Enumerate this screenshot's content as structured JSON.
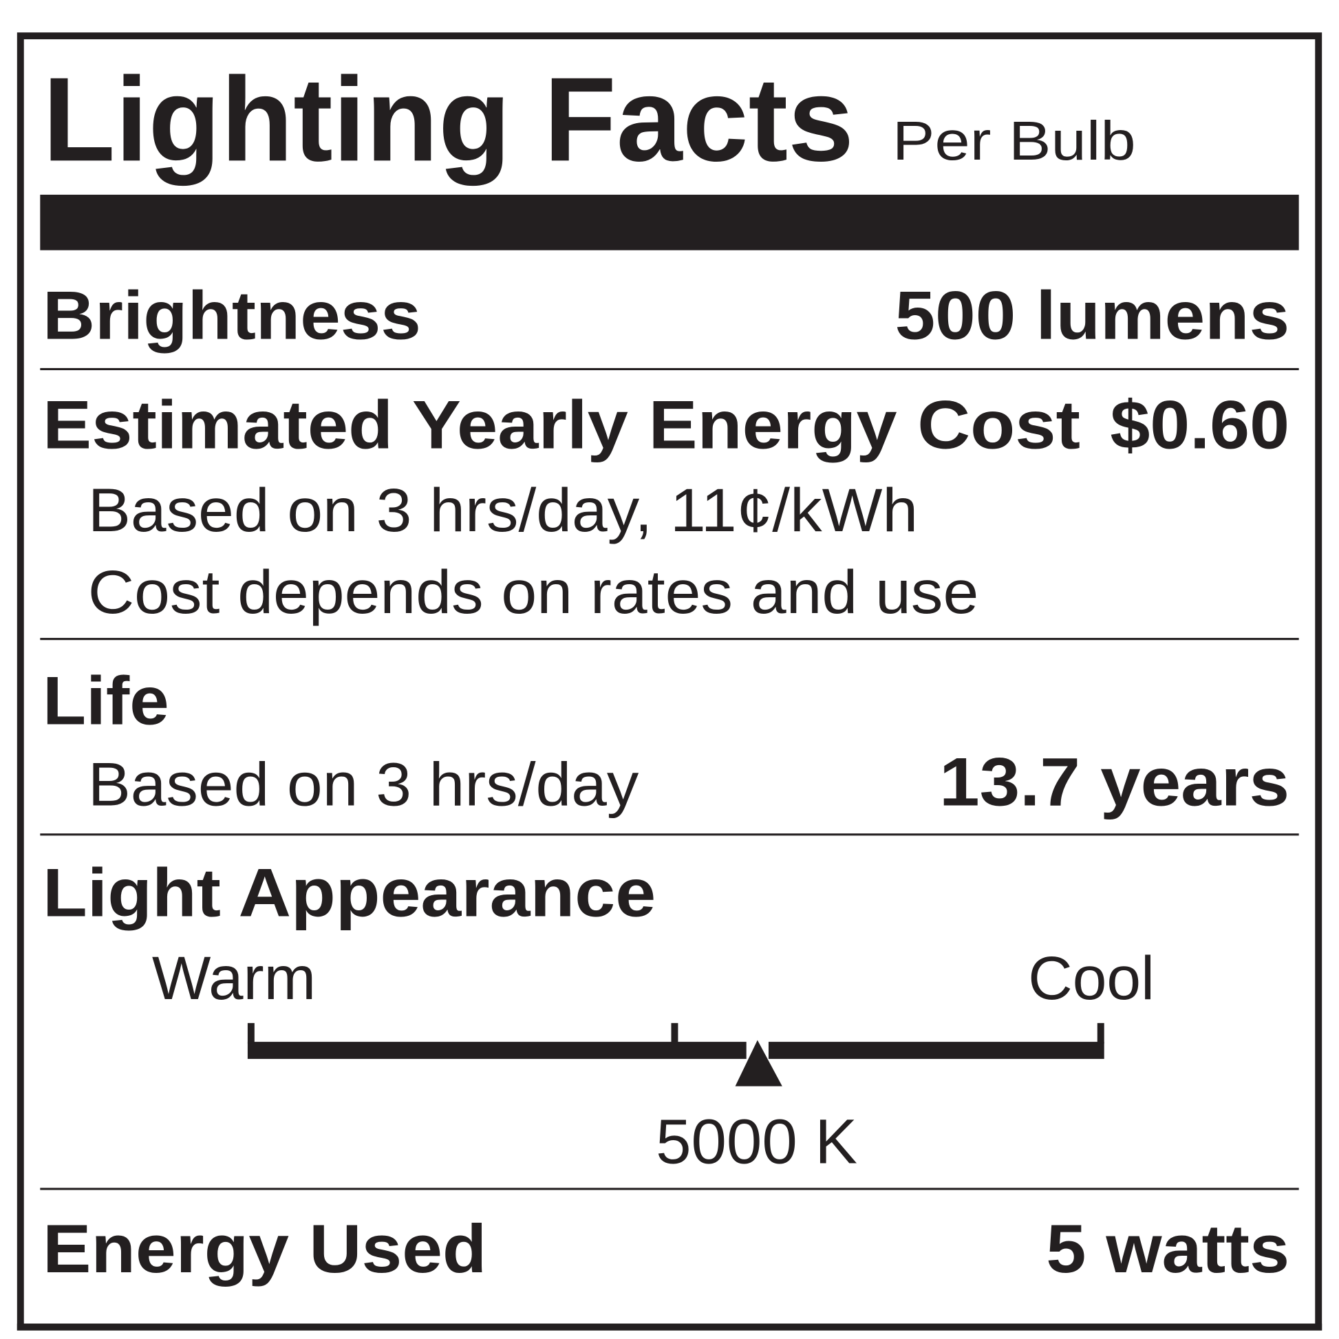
{
  "label": {
    "title": "Lighting Facts",
    "subtitle": "Per Bulb",
    "brightness": {
      "label": "Brightness",
      "value": "500 lumens"
    },
    "energy_cost": {
      "label": "Estimated Yearly Energy Cost",
      "value": "$0.60",
      "note1": "Based on 3 hrs/day, 11¢/kWh",
      "note2": "Cost depends on rates and use"
    },
    "life": {
      "label": "Life",
      "note": "Based on 3 hrs/day",
      "value": "13.7 years"
    },
    "light_appearance": {
      "label": "Light Appearance",
      "warm_label": "Warm",
      "cool_label": "Cool",
      "value": "5000 K",
      "scale_position_fraction": 0.6
    },
    "energy_used": {
      "label": "Energy Used",
      "value": "5 watts"
    }
  },
  "colors": {
    "ink": "#231f20",
    "background": "#ffffff"
  }
}
